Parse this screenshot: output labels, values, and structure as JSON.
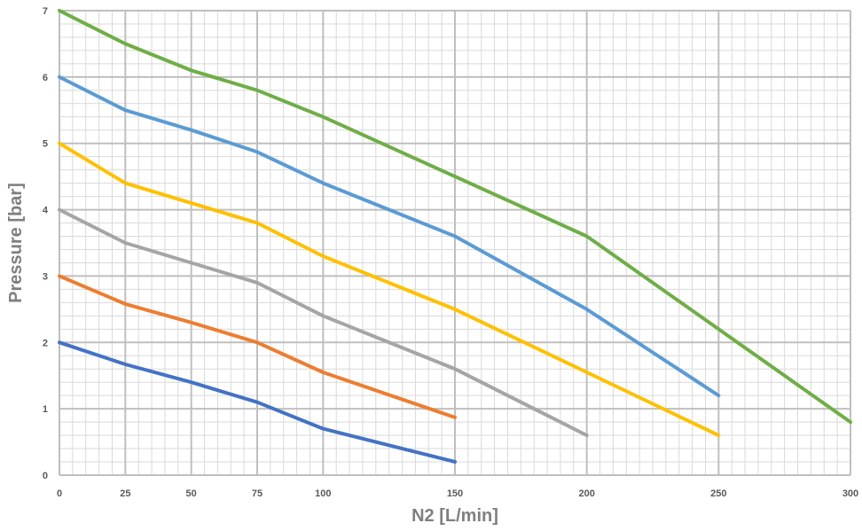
{
  "chart_data": {
    "type": "line",
    "title": "",
    "xlabel": "N2 [L/min]",
    "ylabel": "Pressure [bar]",
    "xlim": [
      0,
      300
    ],
    "ylim": [
      0,
      7
    ],
    "x_ticks": [
      0,
      25,
      50,
      75,
      100,
      150,
      200,
      250,
      300
    ],
    "y_ticks": [
      0,
      1,
      2,
      3,
      4,
      5,
      6,
      7
    ],
    "grid": true,
    "legend": "none",
    "series": [
      {
        "color": "#4472C4",
        "x": [
          0,
          25,
          50,
          75,
          100,
          150
        ],
        "y": [
          2.0,
          1.67,
          1.4,
          1.1,
          0.7,
          0.2
        ]
      },
      {
        "color": "#ED7D31",
        "x": [
          0,
          25,
          50,
          75,
          100,
          150
        ],
        "y": [
          3.0,
          2.58,
          2.3,
          2.0,
          1.55,
          0.87
        ]
      },
      {
        "color": "#A5A5A5",
        "x": [
          0,
          25,
          50,
          75,
          100,
          150,
          200
        ],
        "y": [
          4.0,
          3.5,
          3.2,
          2.9,
          2.4,
          1.6,
          0.6
        ]
      },
      {
        "color": "#FFC000",
        "x": [
          0,
          25,
          50,
          75,
          100,
          150,
          200,
          250
        ],
        "y": [
          5.0,
          4.4,
          4.1,
          3.8,
          3.3,
          2.5,
          1.55,
          0.6
        ]
      },
      {
        "color": "#5B9BD5",
        "x": [
          0,
          25,
          50,
          75,
          100,
          150,
          200,
          250
        ],
        "y": [
          6.0,
          5.5,
          5.2,
          4.87,
          4.4,
          3.6,
          2.5,
          1.2
        ]
      },
      {
        "color": "#70AD47",
        "x": [
          0,
          25,
          50,
          75,
          100,
          150,
          200,
          250,
          300
        ],
        "y": [
          7.0,
          6.5,
          6.1,
          5.8,
          5.4,
          4.5,
          3.6,
          2.2,
          0.8
        ]
      }
    ]
  }
}
